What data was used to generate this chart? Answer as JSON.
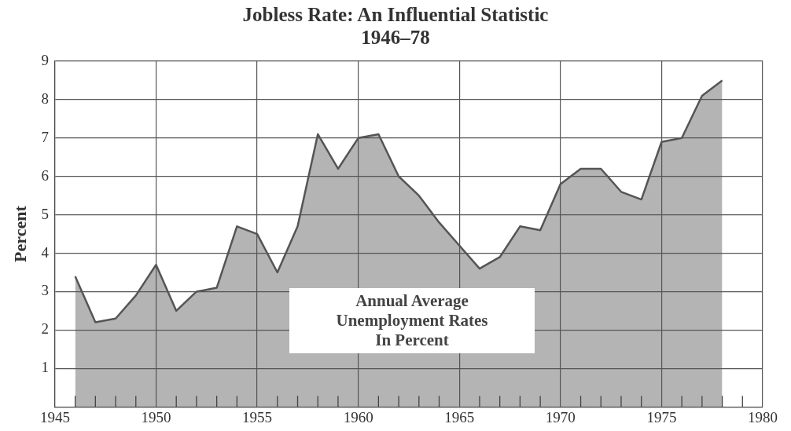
{
  "chart_data": {
    "type": "area",
    "title": "Jobless Rate: An Influential Statistic",
    "subtitle": "1946–78",
    "ylabel": "Percent",
    "annotations": [
      "Annual Average\nUnemployment Rates\nIn Percent"
    ],
    "x": [
      1946,
      1947,
      1948,
      1949,
      1950,
      1951,
      1952,
      1953,
      1954,
      1955,
      1956,
      1957,
      1958,
      1959,
      1960,
      1961,
      1962,
      1963,
      1964,
      1965,
      1966,
      1967,
      1968,
      1969,
      1970,
      1971,
      1972,
      1973,
      1974,
      1975,
      1976,
      1977,
      1978
    ],
    "series": [
      {
        "color": "#555555",
        "values": [
          3.4,
          2.2,
          2.3,
          2.9,
          3.7,
          2.5,
          3.0,
          3.1,
          4.7,
          4.5,
          3.5,
          4.7,
          7.1,
          6.2,
          7.0,
          7.1,
          6.0,
          5.5,
          4.8,
          4.2,
          3.6,
          3.9,
          4.7,
          4.6,
          5.8,
          6.2,
          6.2,
          5.6,
          5.4,
          6.9,
          7.0,
          8.1,
          8.5
        ]
      }
    ],
    "xlim": [
      1945,
      1980
    ],
    "xticks": [
      1945,
      {
        "value": 1946,
        "label": null
      },
      {
        "value": 1947,
        "label": null
      },
      {
        "value": 1948,
        "label": null
      },
      {
        "value": 1949,
        "label": null
      },
      1950,
      {
        "value": 1951,
        "label": null
      },
      {
        "value": 1952,
        "label": null
      },
      {
        "value": 1953,
        "label": null
      },
      {
        "value": 1954,
        "label": null
      },
      1955,
      {
        "value": 1956,
        "label": null
      },
      {
        "value": 1957,
        "label": null
      },
      {
        "value": 1958,
        "label": null
      },
      {
        "value": 1959,
        "label": null
      },
      1960,
      {
        "value": 1961,
        "label": null
      },
      {
        "value": 1962,
        "label": null
      },
      {
        "value": 1963,
        "label": null
      },
      {
        "value": 1964,
        "label": null
      },
      1965,
      {
        "value": 1966,
        "label": null
      },
      {
        "value": 1967,
        "label": null
      },
      {
        "value": 1968,
        "label": null
      },
      {
        "value": 1969,
        "label": null
      },
      1970,
      {
        "value": 1971,
        "label": null
      },
      {
        "value": 1972,
        "label": null
      },
      {
        "value": 1973,
        "label": null
      },
      {
        "value": 1974,
        "label": null
      },
      1975,
      {
        "value": 1976,
        "label": null
      },
      {
        "value": 1977,
        "label": null
      },
      {
        "value": 1978,
        "label": null
      },
      {
        "value": 1979,
        "label": null
      },
      1980
    ],
    "ylim": [
      0,
      9
    ],
    "yticks": [
      1,
      2,
      3,
      4,
      5,
      6,
      7,
      8,
      9
    ],
    "grid": true,
    "legend": false,
    "marker": "none",
    "line_style": "solid"
  }
}
